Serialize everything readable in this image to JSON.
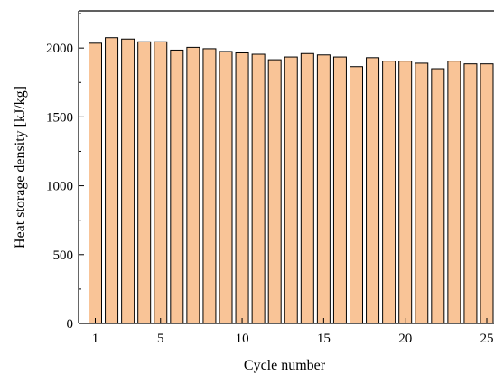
{
  "chart_data": {
    "type": "bar",
    "xlabel": "Cycle number",
    "ylabel": "Heat storage density [kJ/kg]",
    "categories": [
      1,
      2,
      3,
      4,
      5,
      6,
      7,
      8,
      9,
      10,
      11,
      12,
      13,
      14,
      15,
      16,
      17,
      18,
      19,
      20,
      21,
      22,
      23,
      24,
      25
    ],
    "values": [
      2035,
      2075,
      2065,
      2045,
      2045,
      1985,
      2005,
      1995,
      1975,
      1965,
      1955,
      1915,
      1935,
      1960,
      1950,
      1935,
      1865,
      1930,
      1905,
      1905,
      1890,
      1850,
      1905,
      1885,
      1885
    ],
    "ylim": [
      0,
      2270
    ],
    "yticks": [
      0,
      500,
      1000,
      1500,
      2000
    ],
    "xticks": [
      1,
      5,
      10,
      15,
      20,
      25
    ],
    "xtick_labels": [
      "1",
      "5",
      "10",
      "15",
      "20",
      "25"
    ],
    "bar_color": "#F9C497",
    "bar_edge_color": "#000000",
    "grid": false
  }
}
